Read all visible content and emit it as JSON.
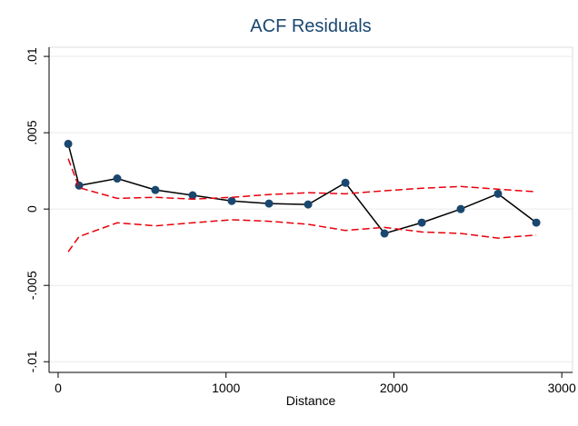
{
  "chart_data": {
    "type": "line",
    "title": "ACF Residuals",
    "x_label": "Distance",
    "x": [
      60,
      125,
      352,
      579,
      801,
      1034,
      1256,
      1489,
      1711,
      1944,
      2166,
      2398,
      2620,
      2848
    ],
    "series": [
      {
        "color": "#1a476f",
        "line_color": "#000000",
        "line_style": "solid",
        "markers": true,
        "values": [
          0.00427,
          0.00154,
          0.002,
          0.00125,
          0.0009,
          0.00053,
          0.00036,
          0.0003,
          0.00172,
          -0.0016,
          -0.00089,
          0.0,
          0.001,
          -0.00089
        ]
      },
      {
        "color": "#e8000b",
        "line_style": "dashed",
        "markers": false,
        "values": [
          0.0033,
          0.0014,
          0.0007,
          0.00077,
          0.00065,
          0.00077,
          0.00095,
          0.00107,
          0.001,
          0.0012,
          0.00136,
          0.00148,
          0.0013,
          0.00113
        ]
      },
      {
        "color": "#e8000b",
        "line_style": "dashed",
        "markers": false,
        "values": [
          -0.0028,
          -0.0018,
          -0.0009,
          -0.0011,
          -0.0009,
          -0.0007,
          -0.0008,
          -0.001,
          -0.0014,
          -0.0012,
          -0.0015,
          -0.0016,
          -0.0019,
          -0.0017
        ]
      }
    ],
    "xlim": [
      -54,
      3064
    ],
    "xticks": [
      0,
      1000,
      2000,
      3000
    ],
    "ylim": [
      -0.0107,
      0.0106
    ],
    "yticks": [
      {
        "value": -0.01,
        "label": "-.01"
      },
      {
        "value": -0.005,
        "label": "-.005"
      },
      0,
      {
        "value": 0.005,
        "label": ".005"
      },
      {
        "value": 0.01,
        "label": ".01"
      }
    ],
    "grid": true
  }
}
